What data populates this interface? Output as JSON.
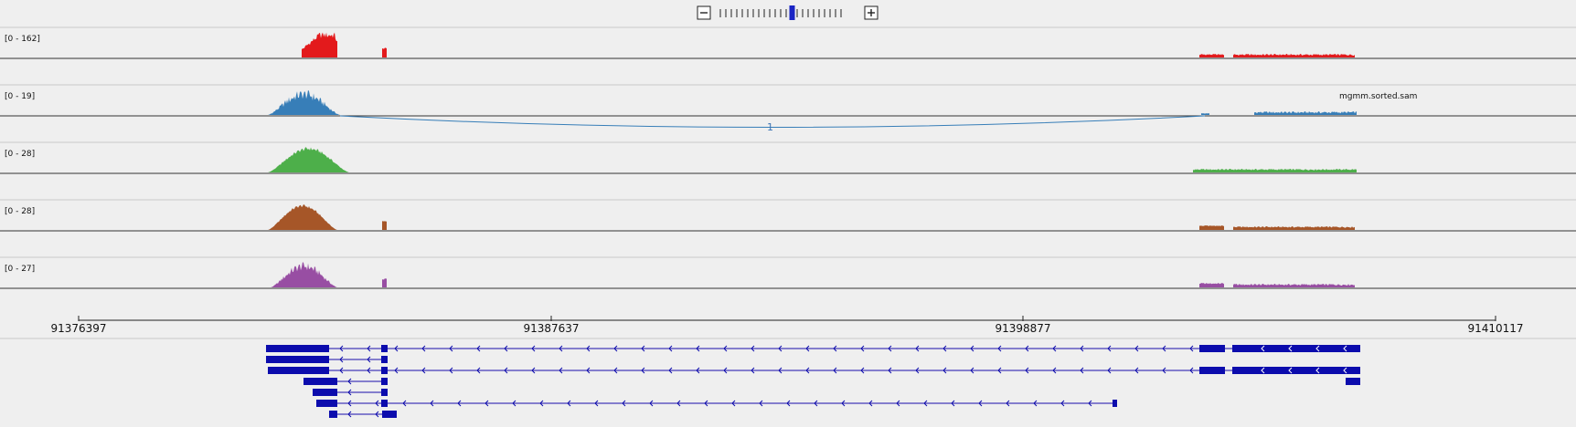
{
  "zoom": {
    "minus_icon": "minus-icon",
    "plus_icon": "plus-icon",
    "tick_count": 23,
    "current_level": 13
  },
  "tracks": [
    {
      "range_label": "[0 - 162]",
      "color": "#e31a1c"
    },
    {
      "range_label": "[0 - 19]",
      "color": "#377eb8",
      "sample_name": "mgmm.sorted.sam",
      "junction_count": "1"
    },
    {
      "range_label": "[0 - 28]",
      "color": "#4daf4a"
    },
    {
      "range_label": "[0 - 28]",
      "color": "#a65628"
    },
    {
      "range_label": "[0 - 27]",
      "color": "#984ea3"
    }
  ],
  "ruler": {
    "ticks": [
      "91376397",
      "91387637",
      "91398877",
      "91410117"
    ]
  },
  "gene_track": {
    "color": "#0c0cad",
    "transcript_count": 7,
    "strand": "minus"
  }
}
